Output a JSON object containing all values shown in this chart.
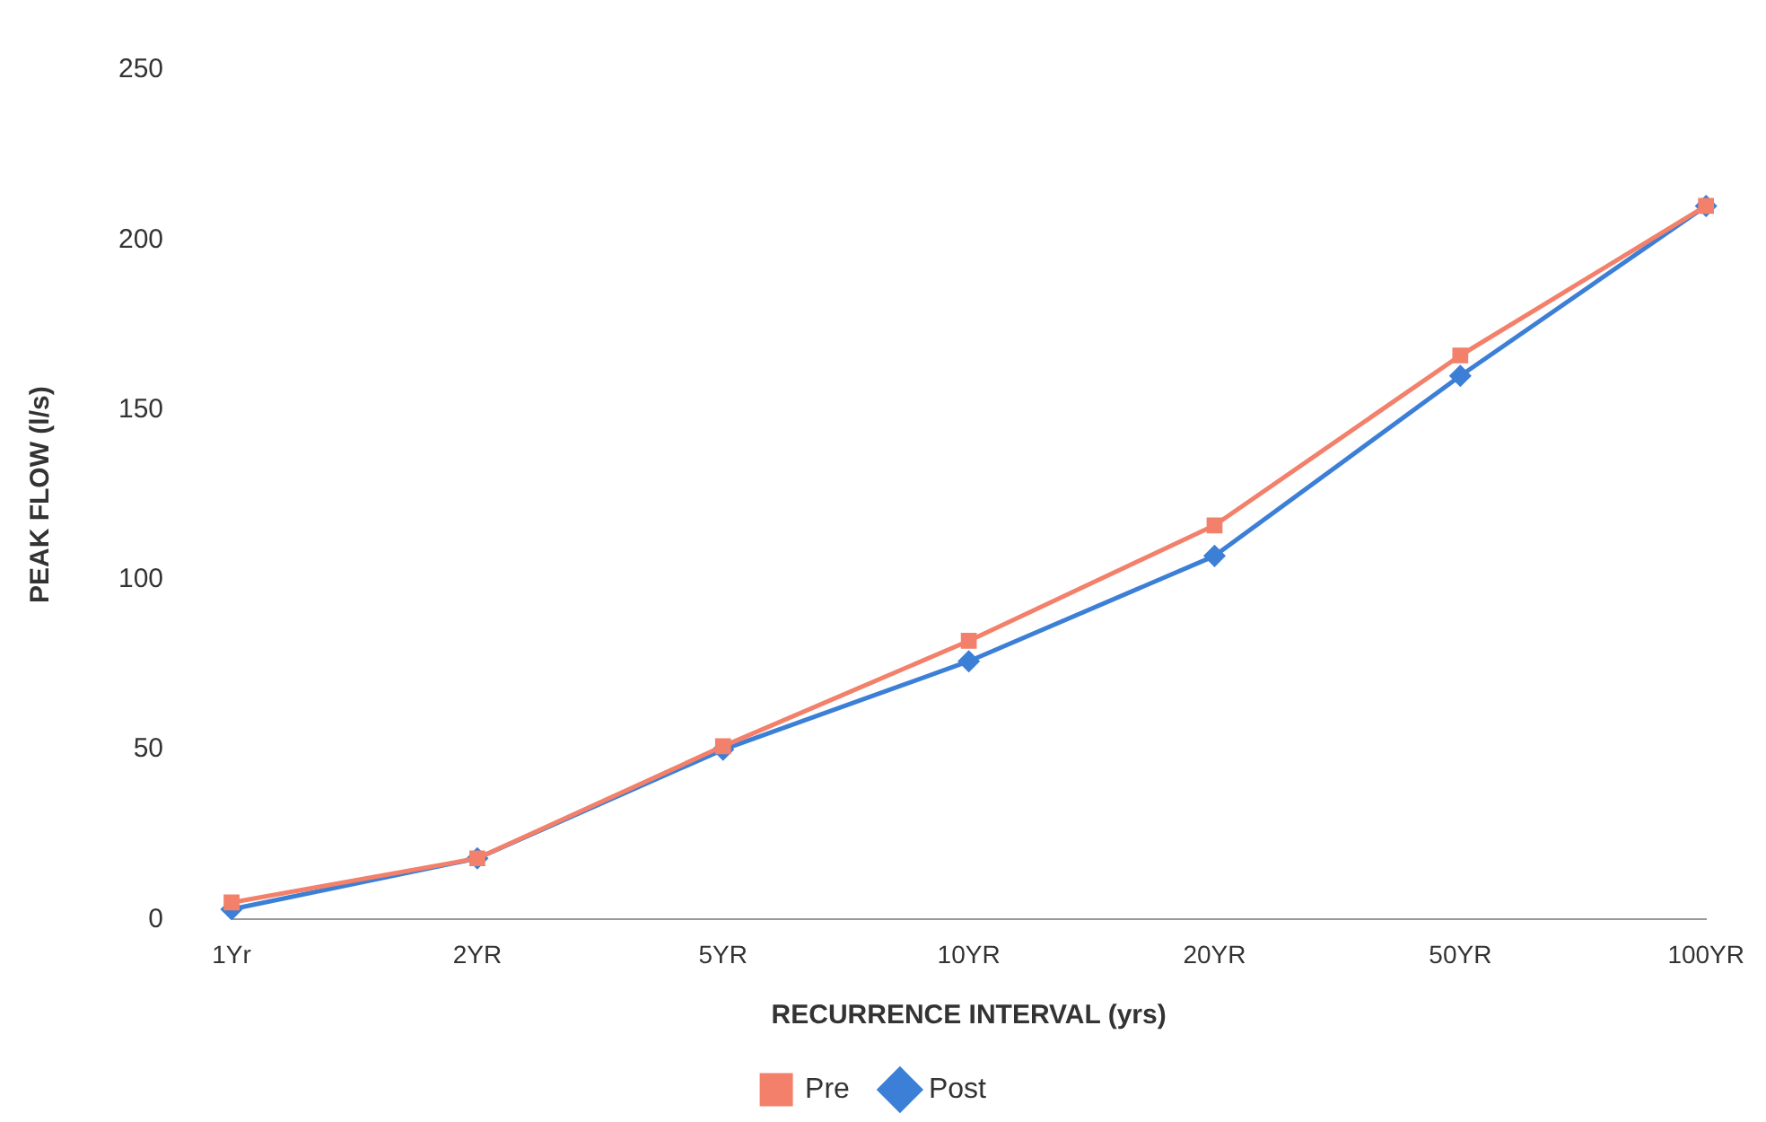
{
  "chart_data": {
    "type": "line",
    "xlabel": "RECURRENCE INTERVAL (yrs)",
    "ylabel": "PEAK FLOW (l/s)",
    "categories": [
      "1Yr",
      "2YR",
      "5YR",
      "10YR",
      "20YR",
      "50YR",
      "100YR"
    ],
    "series": [
      {
        "name": "Post",
        "color": "#3c7fd6",
        "marker": "diamond",
        "values": [
          3,
          18,
          50,
          76,
          107,
          160,
          210
        ]
      },
      {
        "name": "Pre",
        "color": "#f2806a",
        "marker": "square",
        "values": [
          5,
          18,
          51,
          82,
          116,
          166,
          210
        ]
      }
    ],
    "ylim": [
      0,
      250
    ],
    "yticks": [
      0,
      50,
      100,
      150,
      200,
      250
    ],
    "legend": "bottom"
  }
}
